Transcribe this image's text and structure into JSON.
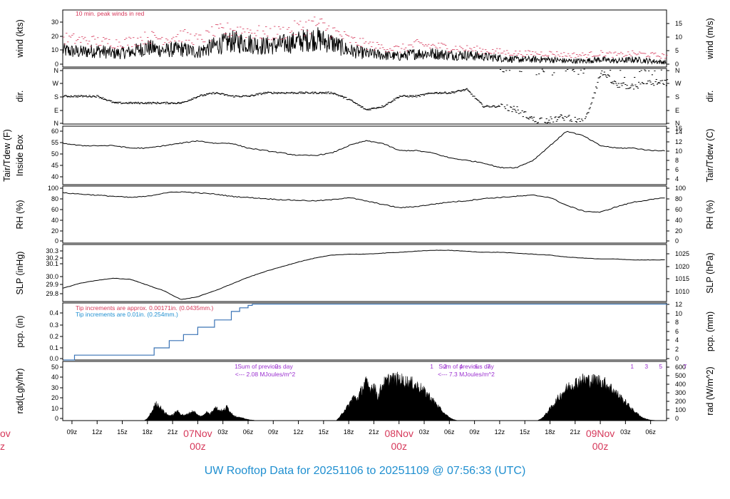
{
  "title": "UW Rooftop Data for 20251106  to  20251109 @ 07:56:33  (UTC)",
  "colors": {
    "trace": "#000000",
    "peak": "#d6385a",
    "pcp": "#3a73b5",
    "note_pcp": "#1f8fd0",
    "purple": "#9b30d0",
    "date": "#d6385a",
    "footer": "#1f8fd0"
  },
  "x_axis": {
    "ticks": [
      "09z",
      "12z",
      "15z",
      "18z",
      "21z",
      "00z",
      "03z",
      "06z",
      "09z",
      "12z",
      "15z",
      "18z",
      "21z",
      "00z",
      "03z",
      "06z",
      "09z",
      "12z",
      "15z",
      "18z",
      "21z",
      "00z",
      "03z",
      "06z"
    ],
    "day_labels": [
      {
        "date": "07Nov",
        "hour": "00z"
      },
      {
        "date": "08Nov",
        "hour": "00z"
      },
      {
        "date": "09Nov",
        "hour": "00z"
      }
    ],
    "left_edge_date": "ov",
    "left_edge_hour": "z",
    "range_hours": [
      7.9,
      79.9
    ]
  },
  "panels": [
    {
      "id": "wind",
      "ylabel_left": "wind (kts)",
      "ylabel_right": "wind (m/s)",
      "left_ticks": [
        "0",
        "10",
        "20",
        "30"
      ],
      "right_ticks": [
        "0",
        "5",
        "10",
        "15"
      ],
      "note": "10 min. peak winds in red"
    },
    {
      "id": "dir",
      "ylabel_left": "dir.",
      "ylabel_right": "dir.",
      "left_ticks": [
        "N",
        "E",
        "S",
        "W",
        "N"
      ],
      "right_ticks": [
        "N",
        "E",
        "S",
        "W",
        "N"
      ]
    },
    {
      "id": "temp",
      "ylabel_left": "Tair/Tdew (F)",
      "ylabel_left2": "Inside Box",
      "ylabel_right": "Tair/Tdew (C)",
      "left_ticks": [
        "40",
        "45",
        "50",
        "55",
        "60"
      ],
      "right_ticks": [
        "4",
        "6",
        "8",
        "10",
        "12",
        "14",
        "16"
      ]
    },
    {
      "id": "rh",
      "ylabel_left": "RH (%)",
      "ylabel_right": "RH (%)",
      "left_ticks": [
        "0",
        "20",
        "40",
        "60",
        "80",
        "100"
      ],
      "right_ticks": [
        "0",
        "20",
        "40",
        "60",
        "80",
        "100"
      ]
    },
    {
      "id": "slp",
      "ylabel_left": "SLP (inHg)",
      "ylabel_right": "SLP (hPa)",
      "left_ticks": [
        "29.8",
        "29.9",
        "30.0",
        "30.1",
        "30.2",
        "30.3"
      ],
      "right_ticks": [
        "1010",
        "1015",
        "1020",
        "1025"
      ]
    },
    {
      "id": "pcp",
      "ylabel_left": "pcp. (in)",
      "ylabel_right": "pcp. (mm)",
      "left_ticks": [
        "0.0",
        "0.1",
        "0.2",
        "0.3",
        "0.4"
      ],
      "right_ticks": [
        "0",
        "2",
        "4",
        "6",
        "8",
        "10",
        "12"
      ],
      "note1": "Tip increments are approx. 0.00171in. (0.0435mm.)",
      "note2": "Tip increments are 0.01in. (0.254mm.)"
    },
    {
      "id": "rad",
      "ylabel_left": "rad(Lgly/hr)",
      "ylabel_right": "rad (W/m^2)",
      "left_ticks": [
        "0",
        "10",
        "20",
        "30",
        "40",
        "50"
      ],
      "right_ticks": [
        "0",
        "100",
        "200",
        "300",
        "400",
        "500",
        "600"
      ],
      "sum1_title": "Sum of previous day",
      "sum1_value": "<--- 2.08 MJoules/m^2",
      "sum2_title": "Sum of previous day",
      "sum2_value": "<--- 7.3 MJoules/m^2",
      "markers": [
        {
          "t": "1",
          "x": 28.6
        },
        {
          "t": "2",
          "x": 33.4
        },
        {
          "t": "1",
          "x": 51.9
        },
        {
          "t": "2",
          "x": 53.5
        },
        {
          "t": "4",
          "x": 55.4
        },
        {
          "t": "6",
          "x": 57.2
        },
        {
          "t": "7",
          "x": 58.7
        },
        {
          "t": "1",
          "x": 75.8
        },
        {
          "t": "3",
          "x": 77.5
        },
        {
          "t": "5",
          "x": 79.2
        },
        {
          "t": "7",
          "x": 82.1
        }
      ]
    }
  ],
  "chart_data": [
    {
      "type": "line",
      "panel": "wind",
      "unit": "kts",
      "ylim": [
        0,
        38
      ],
      "y2lim": [
        0,
        19.5
      ],
      "x": [
        8,
        10,
        12,
        14,
        16,
        18,
        20,
        22,
        24,
        26,
        28,
        30,
        32,
        34,
        36,
        38,
        40,
        42,
        44,
        46,
        48,
        50,
        52,
        54,
        56,
        58,
        60,
        62,
        64,
        66,
        68,
        70,
        72,
        74,
        76,
        78,
        80
      ],
      "series": [
        {
          "name": "wind",
          "values": [
            11,
            10,
            11,
            9,
            10,
            13,
            11,
            12,
            10,
            14,
            17,
            16,
            14,
            15,
            17,
            19,
            16,
            11,
            9,
            8,
            7,
            9,
            9,
            8,
            8,
            7,
            6,
            5,
            5,
            5,
            4,
            4,
            5,
            4,
            5,
            4,
            3
          ]
        },
        {
          "name": "10 min. peak winds",
          "values": [
            19,
            18,
            17,
            16,
            17,
            20,
            19,
            21,
            18,
            23,
            25,
            24,
            22,
            23,
            26,
            29,
            24,
            18,
            15,
            13,
            12,
            15,
            14,
            13,
            12,
            11,
            10,
            9,
            9,
            9,
            8,
            8,
            9,
            8,
            9,
            8,
            7
          ]
        }
      ]
    },
    {
      "type": "scatter",
      "panel": "dir",
      "ylim": [
        "N",
        "E",
        "S",
        "W",
        "N"
      ],
      "x": [
        8,
        10,
        12,
        14,
        16,
        18,
        20,
        22,
        24,
        26,
        28,
        30,
        32,
        34,
        36,
        38,
        40,
        42,
        44,
        46,
        48,
        50,
        52,
        54,
        56,
        58,
        60,
        62,
        64,
        66,
        68,
        70,
        72,
        74,
        76,
        78,
        80
      ],
      "series": [
        {
          "name": "dir",
          "values": [
            "S",
            "S",
            "S",
            "SE",
            "SE",
            "SE",
            "SE",
            "SE",
            "S",
            "SSW",
            "S",
            "S",
            "SSW",
            "SSW",
            "SSW",
            "SSW",
            "SSW",
            "SSE",
            "E",
            "ESE",
            "S",
            "S",
            "SSW",
            "SSW",
            "SW",
            "ESE",
            "ESE",
            "E",
            "NNE",
            "NNE",
            "NE",
            "N",
            "NNW",
            "WSW",
            "WSW",
            "W",
            "W"
          ]
        }
      ]
    },
    {
      "type": "line",
      "panel": "temp",
      "unit": "F",
      "ylim": [
        37,
        61
      ],
      "y2lim": [
        2.8,
        16.1
      ],
      "x": [
        8,
        10,
        12,
        14,
        16,
        18,
        20,
        22,
        24,
        26,
        28,
        30,
        32,
        34,
        36,
        38,
        40,
        42,
        44,
        46,
        48,
        50,
        52,
        54,
        56,
        58,
        60,
        62,
        64,
        66,
        68,
        70,
        72,
        74,
        76,
        78,
        80
      ],
      "series": [
        {
          "name": "Tair",
          "values": [
            54,
            53,
            53,
            53,
            52,
            52,
            53,
            54,
            55,
            54,
            54,
            52,
            51,
            50,
            49,
            49,
            50,
            53,
            55,
            54,
            51,
            51,
            50,
            48,
            47,
            46,
            44,
            44,
            47,
            53,
            59,
            57,
            53,
            52,
            52,
            51,
            51
          ]
        }
      ]
    },
    {
      "type": "line",
      "panel": "rh",
      "unit": "%",
      "ylim": [
        0,
        100
      ],
      "x": [
        8,
        10,
        12,
        14,
        16,
        18,
        20,
        22,
        24,
        26,
        28,
        30,
        32,
        34,
        36,
        38,
        40,
        42,
        44,
        46,
        48,
        50,
        52,
        54,
        56,
        58,
        60,
        62,
        64,
        66,
        68,
        70,
        72,
        74,
        76,
        78,
        80
      ],
      "series": [
        {
          "name": "RH",
          "values": [
            88,
            86,
            84,
            82,
            80,
            82,
            88,
            90,
            88,
            86,
            82,
            80,
            78,
            76,
            75,
            74,
            76,
            80,
            74,
            68,
            62,
            64,
            68,
            72,
            74,
            78,
            80,
            82,
            84,
            80,
            66,
            56,
            54,
            64,
            72,
            76,
            80
          ]
        }
      ]
    },
    {
      "type": "line",
      "panel": "slp",
      "unit": "inHg",
      "ylim": [
        29.75,
        30.34
      ],
      "y2lim": [
        1007.5,
        1027.5
      ],
      "x": [
        8,
        10,
        12,
        14,
        16,
        18,
        20,
        22,
        24,
        26,
        28,
        30,
        32,
        34,
        36,
        38,
        40,
        42,
        44,
        46,
        48,
        50,
        52,
        54,
        56,
        58,
        60,
        62,
        64,
        66,
        68,
        70,
        72,
        74,
        76,
        78,
        80
      ],
      "series": [
        {
          "name": "SLP",
          "values": [
            29.89,
            29.94,
            29.97,
            29.99,
            29.98,
            29.92,
            29.86,
            29.77,
            29.8,
            29.86,
            29.93,
            30.0,
            30.06,
            30.11,
            30.16,
            30.2,
            30.23,
            30.24,
            30.24,
            30.25,
            30.26,
            30.27,
            30.28,
            30.28,
            30.27,
            30.26,
            30.26,
            30.25,
            30.24,
            30.23,
            30.21,
            30.2,
            30.19,
            30.19,
            30.18,
            30.18,
            30.18
          ]
        }
      ]
    },
    {
      "type": "line",
      "panel": "pcp",
      "unit": "in",
      "ylim": [
        0,
        0.47
      ],
      "y2lim": [
        0,
        12
      ],
      "x": [
        8,
        8.7,
        9.3,
        17,
        18.5,
        18.8,
        20.3,
        20.6,
        22,
        22.3,
        23.5,
        24.0,
        25.5,
        26.0,
        27.5,
        28.0,
        29.0,
        30.0,
        30.5,
        80
      ],
      "series": [
        {
          "name": "pcp",
          "values": [
            0,
            0,
            0.04,
            0.04,
            0.04,
            0.1,
            0.1,
            0.16,
            0.16,
            0.21,
            0.21,
            0.27,
            0.27,
            0.33,
            0.33,
            0.4,
            0.43,
            0.45,
            0.46,
            0.46
          ]
        }
      ]
    },
    {
      "type": "area",
      "panel": "rad",
      "unit": "Lgly/hr",
      "ylim": [
        0,
        51.5
      ],
      "y2lim": [
        0,
        620
      ],
      "x": [
        17.6,
        18,
        18.5,
        19,
        19.5,
        20,
        20.5,
        21,
        21.5,
        22,
        22.5,
        23,
        23.5,
        24,
        24.5,
        25,
        25.5,
        26,
        26.5,
        27,
        27.5,
        28,
        28.5,
        29,
        29.5,
        30,
        30.5,
        31
      ],
      "series": [
        {
          "name": "rad day1",
          "values": [
            0,
            2,
            8,
            16,
            13,
            8,
            5,
            5,
            9,
            6,
            5,
            7,
            9,
            5,
            4,
            8,
            6,
            13,
            10,
            9,
            13,
            7,
            4,
            3,
            2,
            1,
            0.5,
            0
          ]
        }
      ]
    },
    {
      "type": "area",
      "panel": "rad",
      "unit": "Lgly/hr",
      "x": [
        40.5,
        41,
        41.5,
        42,
        42.5,
        43,
        43.5,
        44,
        44.5,
        45,
        45.5,
        46,
        46.5,
        47,
        47.5,
        48,
        48.5,
        49,
        49.5,
        50,
        50.5,
        51,
        51.5,
        52,
        52.5,
        53,
        53.5,
        54,
        54.5,
        55
      ],
      "series": [
        {
          "name": "rad day2",
          "values": [
            0,
            4,
            10,
            14,
            22,
            20,
            28,
            36,
            30,
            33,
            22,
            34,
            36,
            40,
            38,
            39,
            37,
            36,
            35,
            33,
            31,
            27,
            24,
            19,
            15,
            10,
            6,
            3,
            1,
            0
          ]
        }
      ]
    },
    {
      "type": "area",
      "panel": "rad",
      "unit": "Lgly/hr",
      "x": [
        64.5,
        65,
        65.5,
        66,
        66.5,
        67,
        67.5,
        68,
        68.5,
        69,
        69.5,
        70,
        70.5,
        71,
        71.5,
        72,
        72.5,
        73,
        73.5,
        74,
        74.5,
        75,
        75.5,
        76,
        76.5,
        77,
        77.5,
        78,
        78.5,
        79
      ],
      "series": [
        {
          "name": "rad day3",
          "values": [
            0,
            2,
            6,
            11,
            16,
            21,
            26,
            30,
            33,
            35,
            37,
            38,
            38,
            37,
            38,
            37,
            35,
            32,
            29,
            25,
            21,
            17,
            13,
            9,
            6,
            3,
            1.5,
            0.5,
            0.2,
            0
          ]
        }
      ]
    }
  ]
}
